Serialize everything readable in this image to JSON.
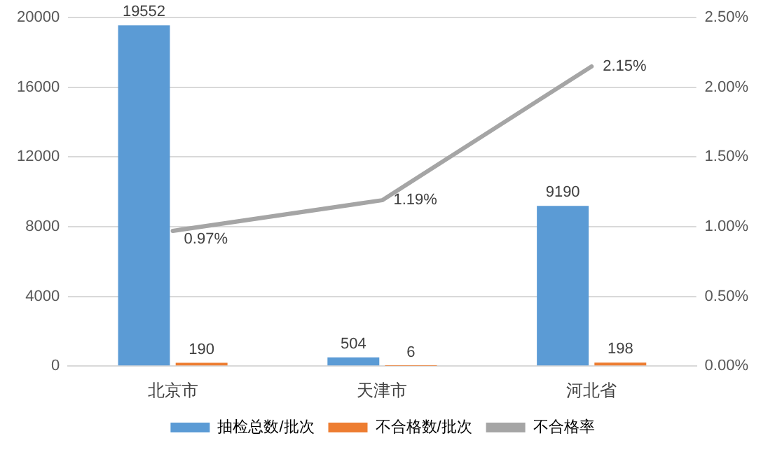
{
  "chart_data": {
    "type": "bar",
    "categories": [
      "北京市",
      "天津市",
      "河北省"
    ],
    "series": [
      {
        "name": "抽检总数/批次",
        "color": "#5b9bd5",
        "values": [
          19552,
          504,
          9190
        ],
        "value_labels": [
          "19552",
          "504",
          "9190"
        ]
      },
      {
        "name": "不合格数/批次",
        "color": "#ed7d31",
        "values": [
          190,
          6,
          198
        ],
        "value_labels": [
          "190",
          "6",
          "198"
        ]
      },
      {
        "name": "不合格率",
        "type": "line",
        "axis": "y2",
        "color": "#a5a5a5",
        "values": [
          0.97,
          1.19,
          2.15
        ],
        "value_labels": [
          "0.97%",
          "1.19%",
          "2.15%"
        ]
      }
    ],
    "ylim": [
      0,
      20000
    ],
    "yticks": [
      0,
      4000,
      8000,
      12000,
      16000,
      20000
    ],
    "y2lim": [
      0,
      2.5
    ],
    "y2ticks": [
      {
        "value": 0,
        "label": "0.00%"
      },
      {
        "value": 0.5,
        "label": "0.50%"
      },
      {
        "value": 1,
        "label": "1.00%"
      },
      {
        "value": 1.5,
        "label": "1.50%"
      },
      {
        "value": 2,
        "label": "2.00%"
      },
      {
        "value": 2.5,
        "label": "2.50%"
      }
    ],
    "grid": "y",
    "legend": "bottom",
    "marker": "none",
    "line_style": "solid"
  }
}
